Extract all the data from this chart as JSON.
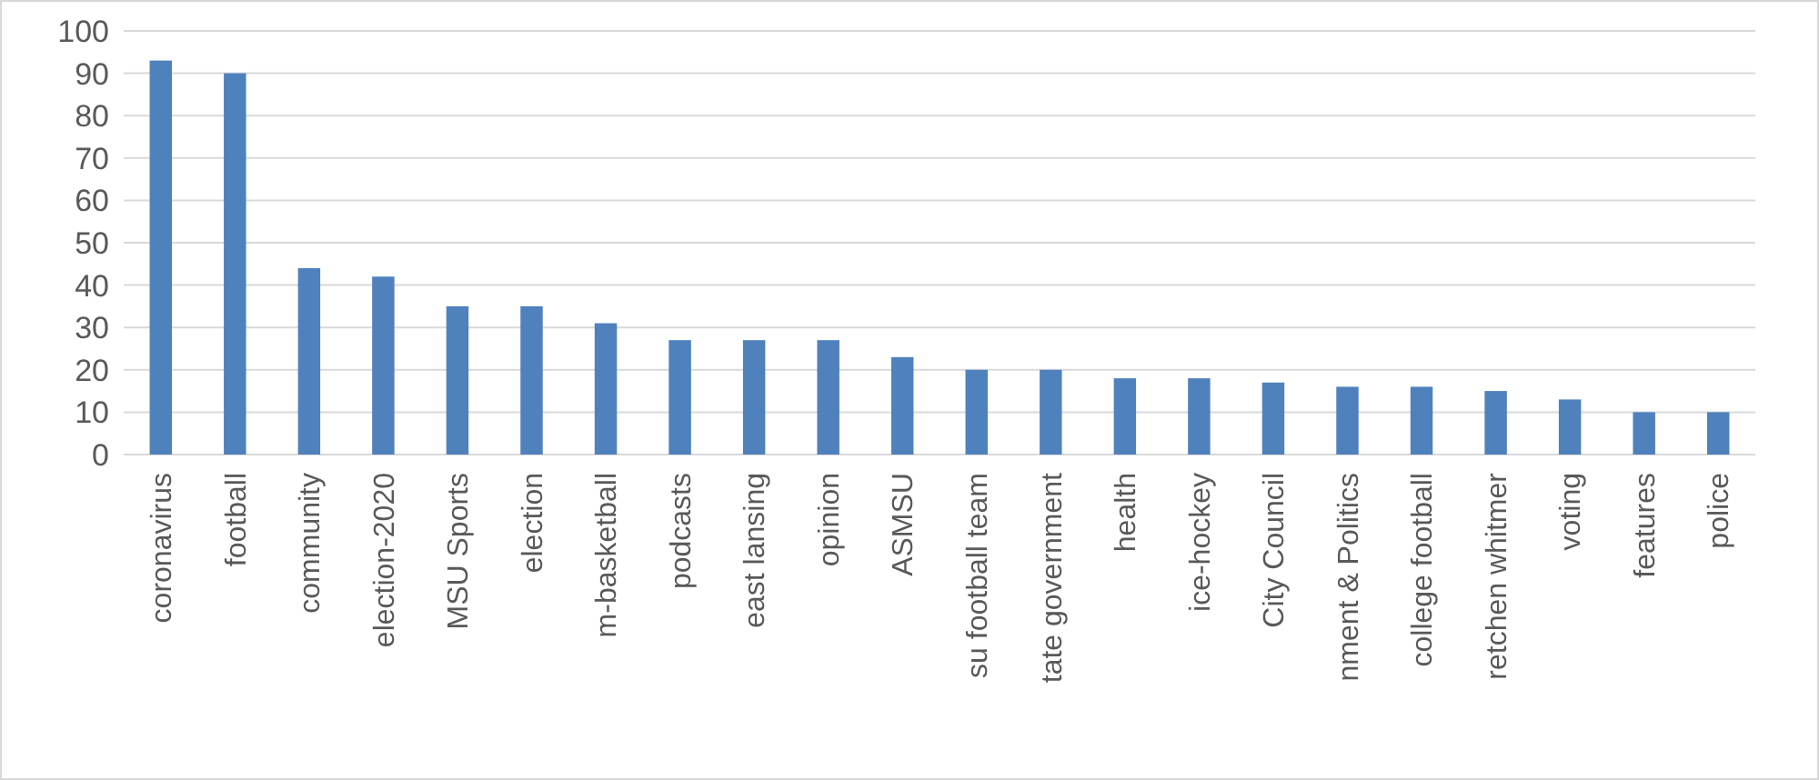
{
  "chart_data": {
    "type": "bar",
    "categories": [
      "coronavirus",
      "football",
      "community",
      "election-2020",
      "MSU Sports",
      "election",
      "m-basketball",
      "podcasts",
      "east lansing",
      "opinion",
      "ASMSU",
      "su football team",
      "tate government",
      "health",
      "ice-hockey",
      "City Council",
      "nment & Politics",
      "college football",
      "retchen whitmer",
      "voting",
      "features",
      "police"
    ],
    "values": [
      93,
      90,
      44,
      42,
      35,
      35,
      31,
      27,
      27,
      27,
      23,
      20,
      20,
      18,
      18,
      17,
      16,
      16,
      15,
      13,
      10,
      10
    ],
    "color": "#4f81bd",
    "ylim": [
      0,
      100
    ],
    "yticks": [
      0,
      10,
      20,
      30,
      40,
      50,
      60,
      70,
      80,
      90,
      100
    ],
    "grid": "y"
  }
}
